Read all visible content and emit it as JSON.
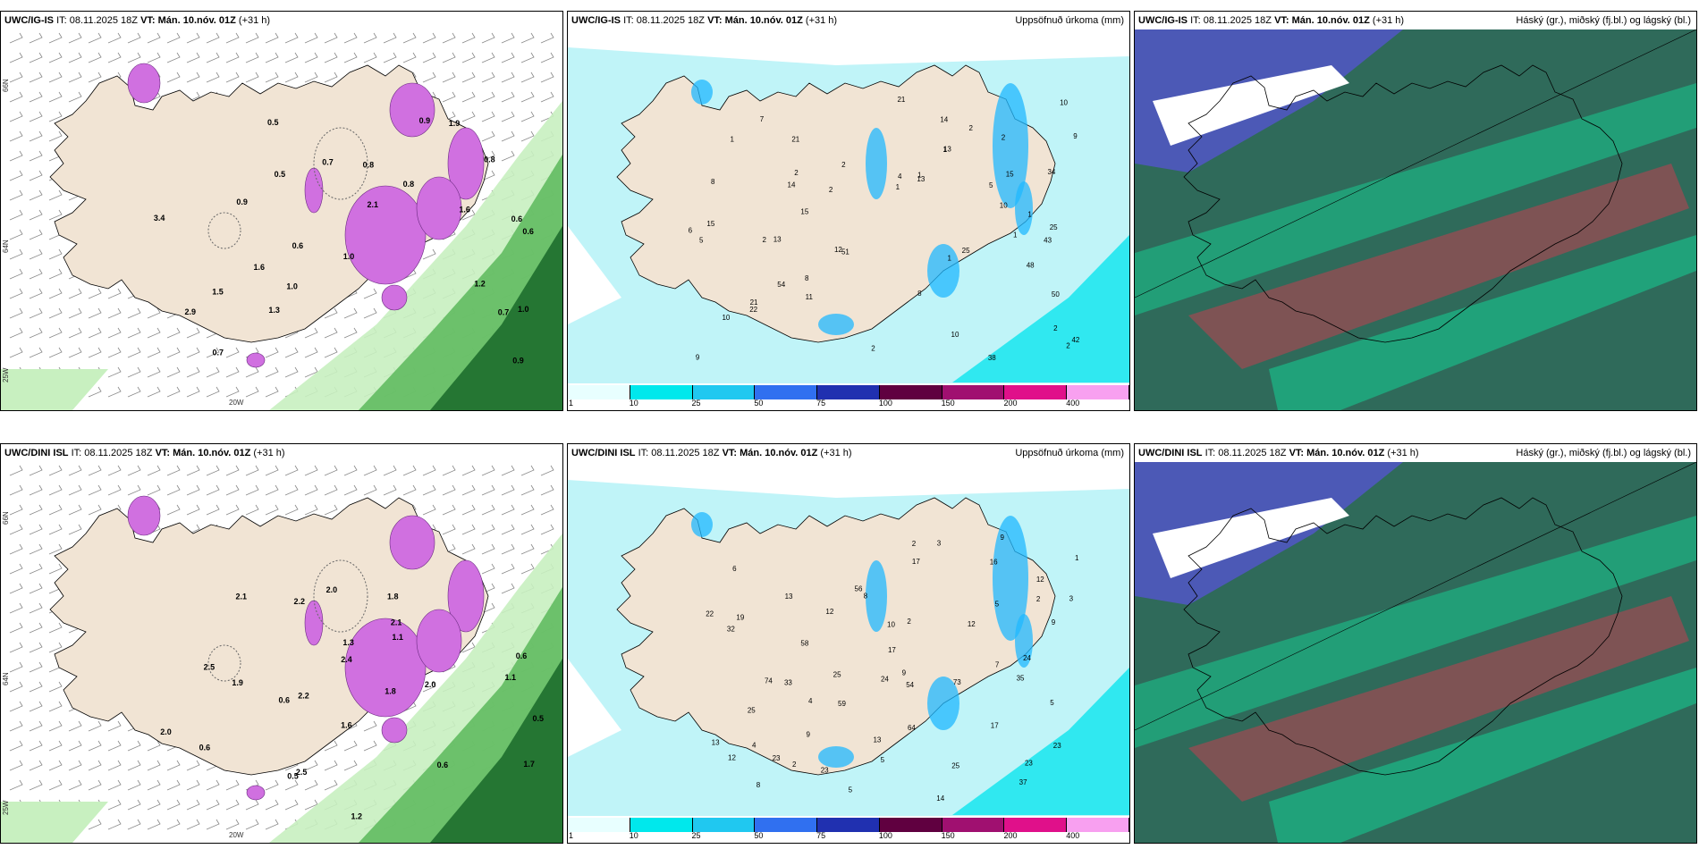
{
  "panels": [
    {
      "model": "UWC/IG-IS",
      "it_label": "IT:",
      "it_value": "08.11.2025 18Z",
      "vt_label": "VT:",
      "vt_value": "Mán. 10.nóv. 01Z",
      "lead": "(+31 h)",
      "title": "",
      "type": "wind",
      "lon_label": "20W",
      "lat_labels": [
        "66N",
        "64N",
        "25W"
      ],
      "values": [
        "0.5",
        "0.6",
        "0.8",
        "0.6",
        "0.6",
        "1.0",
        "1.0",
        "0.9",
        "0.7",
        "0.8",
        "0.9",
        "1.2",
        "1.6",
        "1.3",
        "2.9",
        "1.0",
        "1.6",
        "3.4",
        "0.5",
        "0.7",
        "0.9",
        "0.8",
        "0.7",
        "1.5",
        "2.1",
        "1.9"
      ]
    },
    {
      "model": "UWC/IG-IS",
      "it_label": "IT:",
      "it_value": "08.11.2025 18Z",
      "vt_label": "VT:",
      "vt_value": "Mán. 10.nóv. 01Z",
      "lead": "(+31 h)",
      "title": "Uppsöfnuð úrkoma (mm)",
      "type": "precip",
      "values": [
        "2",
        "2",
        "1",
        "1",
        "10",
        "4",
        "8",
        "1",
        "15",
        "8",
        "7",
        "14",
        "6",
        "13",
        "5",
        "5",
        "9",
        "21",
        "2",
        "50",
        "38",
        "51",
        "21",
        "34",
        "2",
        "12",
        "10",
        "15",
        "13",
        "2",
        "25",
        "54",
        "9",
        "10",
        "14",
        "13",
        "11",
        "22",
        "21",
        "25",
        "1",
        "2",
        "1",
        "1",
        "2",
        "2",
        "1",
        "10",
        "8",
        "43",
        "48",
        "42",
        "2",
        "15"
      ]
    },
    {
      "model": "UWC/IG-IS",
      "it_label": "IT:",
      "it_value": "08.11.2025 18Z",
      "vt_label": "VT:",
      "vt_value": "Mán. 10.nóv. 01Z",
      "lead": "(+31 h)",
      "title": "Háský (gr.), miðský (fj.bl.) og lágský (bl.)",
      "type": "cloud"
    },
    {
      "model": "UWC/DINI ISL",
      "it_label": "IT:",
      "it_value": "08.11.2025 18Z",
      "vt_label": "VT:",
      "vt_value": "Mán. 10.nóv. 01Z",
      "lead": "(+31 h)",
      "title": "",
      "type": "wind",
      "lon_label": "20W",
      "lat_labels": [
        "66N",
        "64N",
        "25W"
      ],
      "values": [
        "0.5",
        "1.3",
        "1.1",
        "0.6",
        "0.6",
        "2.0",
        "2.1",
        "2.2",
        "2.4",
        "0.6",
        "0.5",
        "1.8",
        "1.1",
        "2.0",
        "2.2",
        "1.8",
        "2.5",
        "0.6",
        "2.0",
        "2.5",
        "1.9",
        "2.1",
        "1.6",
        "1.7",
        "1.2"
      ]
    },
    {
      "model": "UWC/DINI ISL",
      "it_label": "IT:",
      "it_value": "08.11.2025 18Z",
      "vt_label": "VT:",
      "vt_value": "Mán. 10.nóv. 01Z",
      "lead": "(+31 h)",
      "title": "Uppsöfnuð úrkoma (mm)",
      "type": "precip",
      "values": [
        "2",
        "2",
        "1",
        "2",
        "3",
        "4",
        "10",
        "13",
        "37",
        "8",
        "5",
        "9",
        "12",
        "6",
        "12",
        "14",
        "5",
        "13",
        "9",
        "4",
        "7",
        "5",
        "8",
        "59",
        "73",
        "58",
        "74",
        "64",
        "35",
        "54",
        "16",
        "25",
        "9",
        "3",
        "17",
        "13",
        "5",
        "56",
        "33",
        "25",
        "22",
        "19",
        "17",
        "17",
        "23",
        "23",
        "23",
        "24",
        "24",
        "23",
        "25",
        "9",
        "2",
        "32",
        "12",
        "12"
      ]
    },
    {
      "model": "UWC/DINI ISL",
      "it_label": "IT:",
      "it_value": "08.11.2025 18Z",
      "vt_label": "VT:",
      "vt_value": "Mán. 10.nóv. 01Z",
      "lead": "(+31 h)",
      "title": "Háský (gr.), miðský (fj.bl.) og lágský (bl.)",
      "type": "cloud"
    }
  ],
  "colorbar": {
    "labels": [
      "1",
      "10",
      "25",
      "50",
      "75",
      "100",
      "150",
      "200",
      "400"
    ],
    "colors": [
      "#e8ffff",
      "#00e8ec",
      "#20c8f0",
      "#3070f0",
      "#2030b0",
      "#600040",
      "#a01070",
      "#e0108a",
      "#f8a0f0"
    ]
  },
  "colors": {
    "land": "#f1e4d4",
    "sea_precip": "#ffffff",
    "precip_light": "#c0f4f8",
    "precip_mid": "#30e8f0",
    "precip_blue": "#20b8ff",
    "wind_green_light": "#c8f0c0",
    "wind_green": "#5ab85a",
    "wind_green_dark": "#1e6e2e",
    "snow_purple": "#d070e0",
    "cloud_dark": "#2f6a5a",
    "cloud_teal": "#18c890",
    "cloud_red": "#c04050",
    "cloud_blue": "#5058c0"
  }
}
